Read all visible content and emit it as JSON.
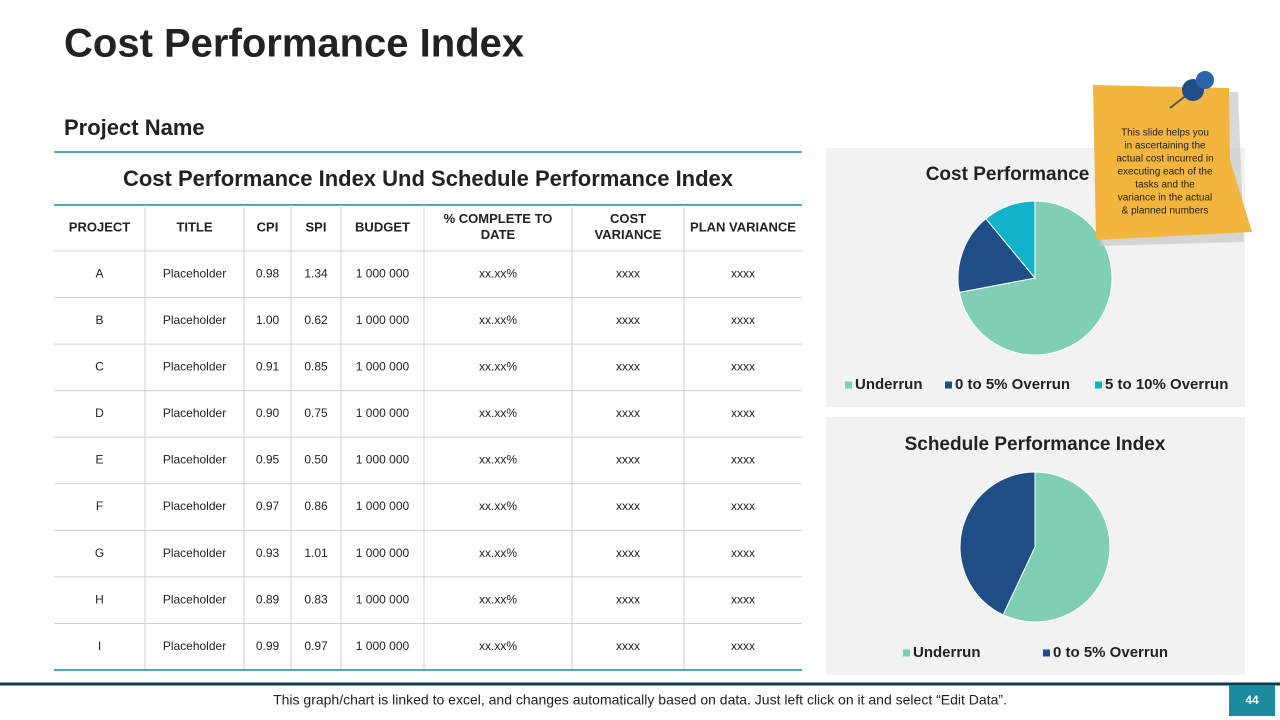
{
  "title": "Cost Performance Index",
  "subtitle": "Project Name",
  "table": {
    "title": "Cost Performance Index Und Schedule Performance Index",
    "columns": [
      "PROJECT",
      "TITLE",
      "CPI",
      "SPI",
      "BUDGET",
      "% COMPLETE TO DATE",
      "COST VARIANCE",
      "PLAN VARIANCE"
    ],
    "rows": [
      [
        "A",
        "Placeholder",
        "0.98",
        "1.34",
        "1 000 000",
        "xx.xx%",
        "xxxx",
        "xxxx"
      ],
      [
        "B",
        "Placeholder",
        "1.00",
        "0.62",
        "1 000 000",
        "xx.xx%",
        "xxxx",
        "xxxx"
      ],
      [
        "C",
        "Placeholder",
        "0.91",
        "0.85",
        "1 000 000",
        "xx.xx%",
        "xxxx",
        "xxxx"
      ],
      [
        "D",
        "Placeholder",
        "0.90",
        "0.75",
        "1 000 000",
        "xx.xx%",
        "xxxx",
        "xxxx"
      ],
      [
        "E",
        "Placeholder",
        "0.95",
        "0.50",
        "1 000 000",
        "xx.xx%",
        "xxxx",
        "xxxx"
      ],
      [
        "F",
        "Placeholder",
        "0.97",
        "0.86",
        "1 000 000",
        "xx.xx%",
        "xxxx",
        "xxxx"
      ],
      [
        "G",
        "Placeholder",
        "0.93",
        "1.01",
        "1 000 000",
        "xx.xx%",
        "xxxx",
        "xxxx"
      ],
      [
        "H",
        "Placeholder",
        "0.89",
        "0.83",
        "1 000 000",
        "xx.xx%",
        "xxxx",
        "xxxx"
      ],
      [
        "I",
        "Placeholder",
        "0.99",
        "0.97",
        "1 000 000",
        "xx.xx%",
        "xxxx",
        "xxxx"
      ]
    ]
  },
  "charts": [
    {
      "type": "pie",
      "title": "Cost Performance Index",
      "categories": [
        "Underrun",
        "0 to 5% Overrun",
        "5 to 10% Overrun"
      ],
      "values": [
        72,
        17,
        11
      ],
      "colors": [
        "#7fcfb5",
        "#1f4e87",
        "#11b3c9"
      ]
    },
    {
      "type": "pie",
      "title": "Schedule Performance Index",
      "categories": [
        "Underrun",
        "0 to 5% Overrun"
      ],
      "values": [
        57,
        43
      ],
      "colors": [
        "#7fcfb5",
        "#1f4e87"
      ]
    }
  ],
  "note": [
    "This slide helps you",
    "in ascertaining the",
    "actual cost incurred in",
    "executing each of the",
    "tasks and the",
    "variance in the actual",
    "& planned numbers"
  ],
  "footer": {
    "text": "This graph/chart is linked to excel, and changes automatically based on data. Just left click on it and select “Edit Data”.",
    "page": "44"
  }
}
